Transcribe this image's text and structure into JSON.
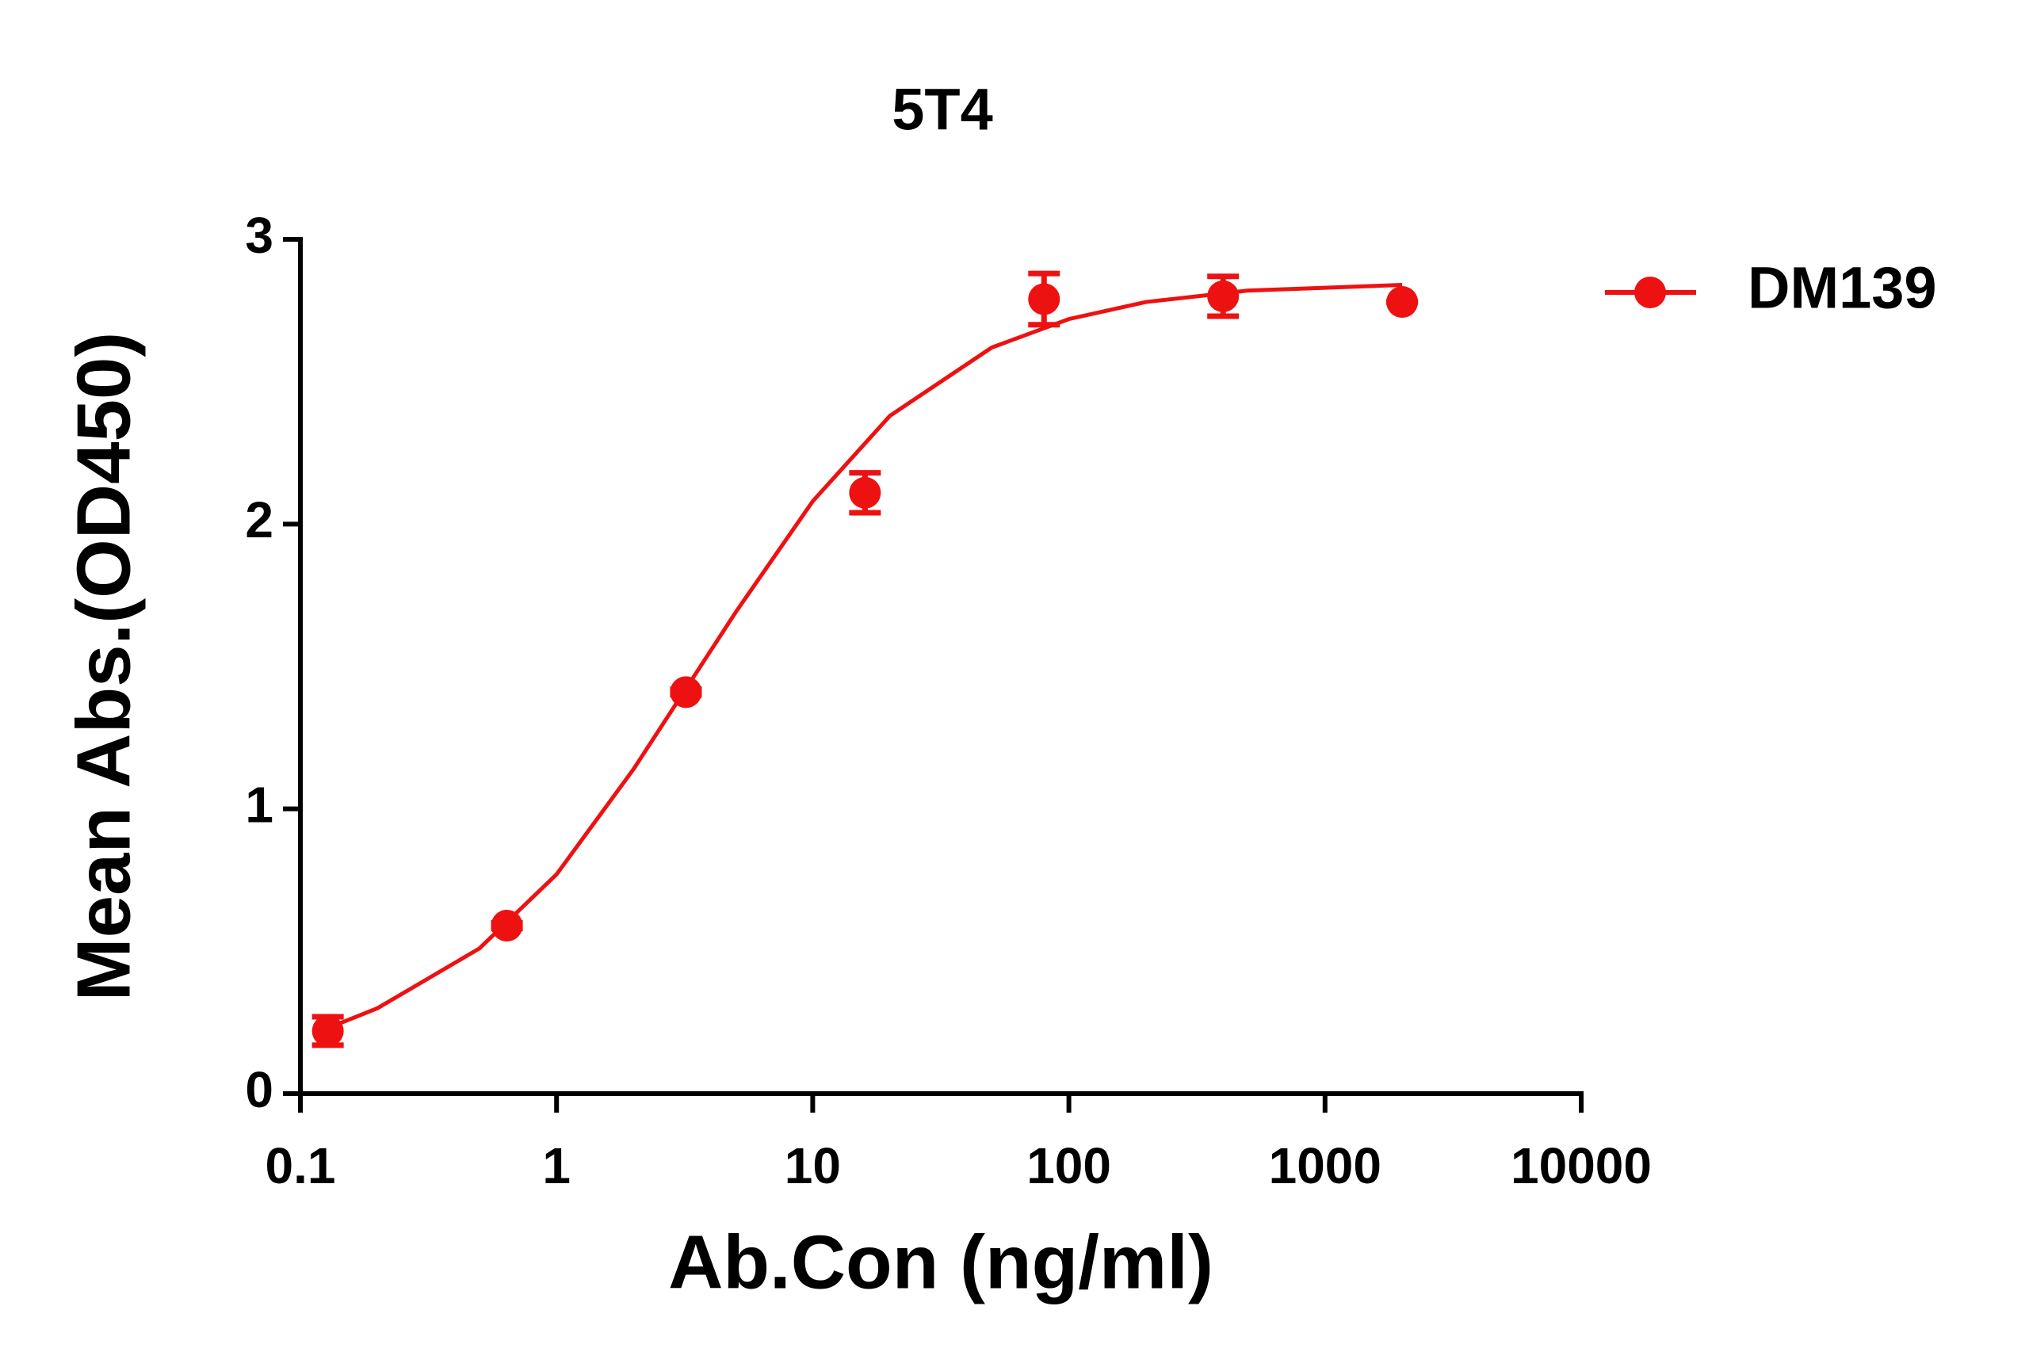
{
  "chart_data": {
    "type": "scatter",
    "title": "5T4",
    "x_label": "Ab.Con (ng/ml)",
    "y_label": "Mean Abs.(OD450)",
    "x_scale": "log",
    "xlim": [
      0.1,
      10000
    ],
    "xticks": [
      0.1,
      1,
      10,
      100,
      1000,
      10000
    ],
    "ylim": [
      0,
      3
    ],
    "yticks": [
      0,
      1,
      2,
      3
    ],
    "legend": "right",
    "series": [
      {
        "name": "DM139",
        "color": "#ee1111",
        "x": [
          0.128,
          0.64,
          3.2,
          16,
          80,
          400,
          2000
        ],
        "values": [
          0.22,
          0.59,
          1.41,
          2.11,
          2.79,
          2.8,
          2.78
        ],
        "errors": [
          0.05,
          0.01,
          0.01,
          0.07,
          0.09,
          0.07,
          0
        ],
        "fit_x": [
          0.128,
          0.2,
          0.5,
          1,
          2,
          5,
          10,
          20,
          50,
          100,
          200,
          500,
          1000,
          2000
        ],
        "fit_values": [
          0.23,
          0.3,
          0.51,
          0.77,
          1.14,
          1.69,
          2.08,
          2.38,
          2.62,
          2.72,
          2.78,
          2.82,
          2.83,
          2.84
        ]
      }
    ]
  }
}
